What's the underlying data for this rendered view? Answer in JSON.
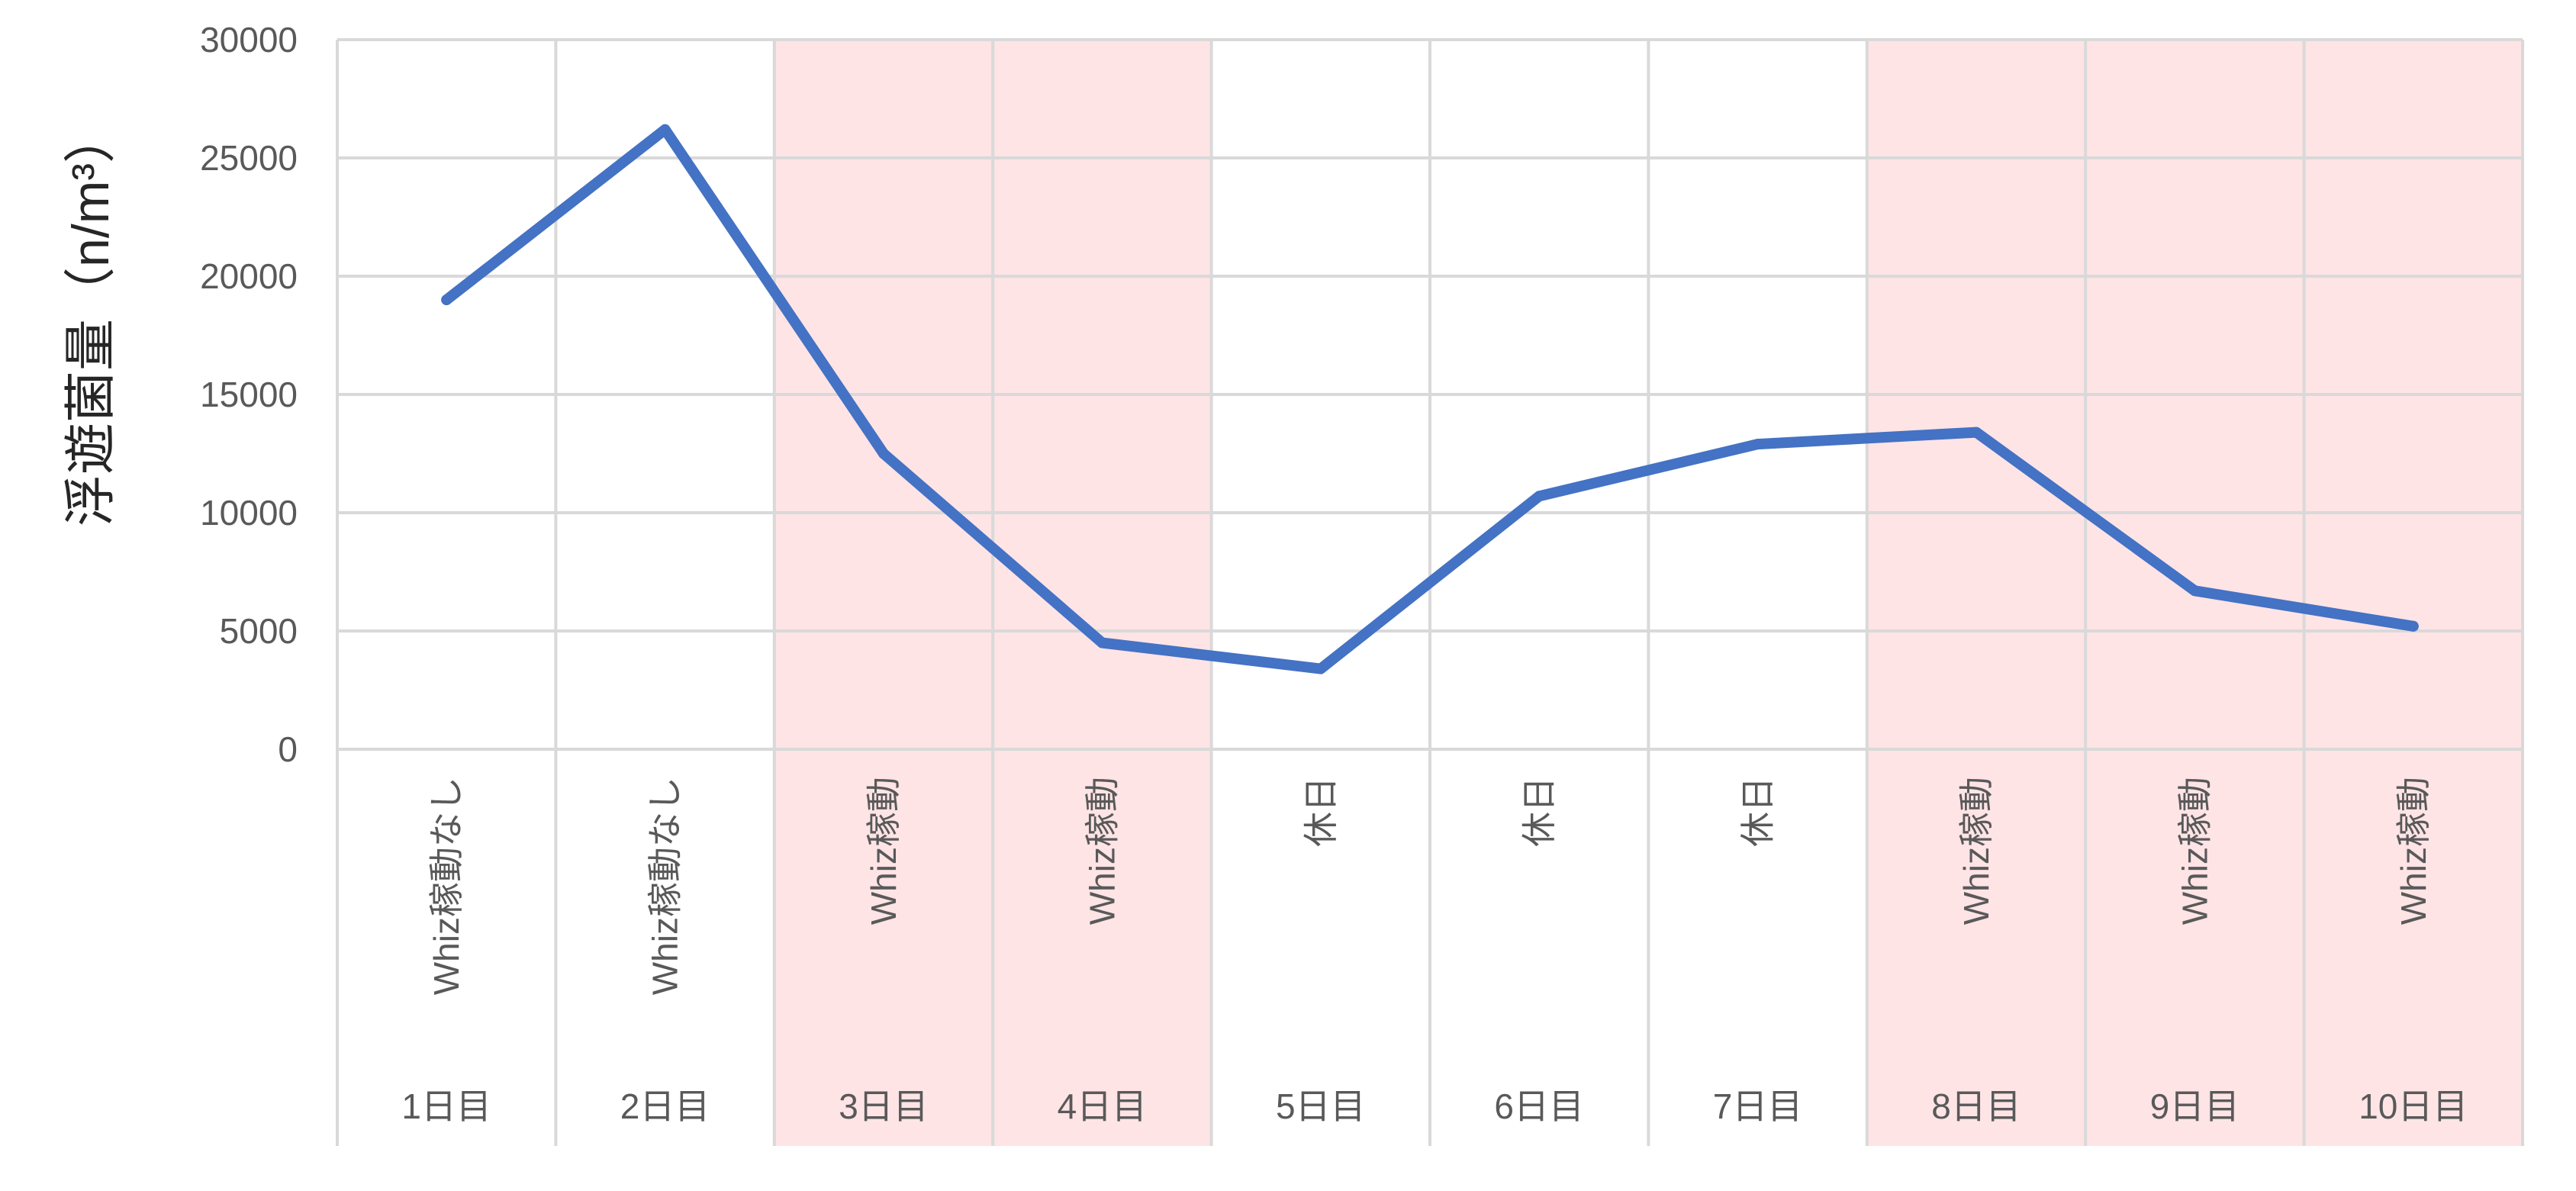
{
  "chart_data": {
    "type": "line",
    "ylabel": "浮遊菌量（n/m³）",
    "ylim": [
      0,
      30000
    ],
    "yticks": [
      0,
      5000,
      10000,
      15000,
      20000,
      25000,
      30000
    ],
    "grid": true,
    "legend": "none",
    "categories": [
      "1日目",
      "2日目",
      "3日目",
      "4日目",
      "5日目",
      "6日目",
      "7日目",
      "8日目",
      "9日目",
      "10日目"
    ],
    "conditions": [
      "Whiz稼動なし",
      "Whiz稼動なし",
      "Whiz稼動",
      "Whiz稼動",
      "休日",
      "休日",
      "休日",
      "Whiz稼動",
      "Whiz稼動",
      "Whiz稼動"
    ],
    "highlighted": [
      false,
      false,
      true,
      true,
      false,
      false,
      false,
      true,
      true,
      true
    ],
    "series": [
      {
        "values": [
          19000,
          26200,
          12500,
          4500,
          3400,
          10700,
          12900,
          13400,
          6700,
          5200
        ]
      }
    ],
    "colors": {
      "line": "#4472C4",
      "highlight": "#FFE4E6",
      "grid": "#D9D9D9",
      "text": "#595959"
    }
  }
}
